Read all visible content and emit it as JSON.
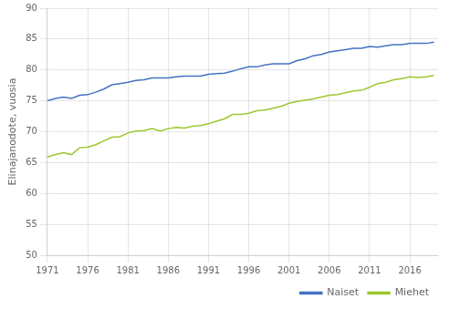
{
  "chart_data": {
    "type": "line",
    "ylabel": "Elinajanodote, vuosia",
    "x": [
      1971,
      1972,
      1973,
      1974,
      1975,
      1976,
      1977,
      1978,
      1979,
      1980,
      1981,
      1982,
      1983,
      1984,
      1985,
      1986,
      1987,
      1988,
      1989,
      1990,
      1991,
      1992,
      1993,
      1994,
      1995,
      1996,
      1997,
      1998,
      1999,
      2000,
      2001,
      2002,
      2003,
      2004,
      2005,
      2006,
      2007,
      2008,
      2009,
      2010,
      2011,
      2012,
      2013,
      2014,
      2015,
      2016,
      2017,
      2018,
      2019
    ],
    "series": [
      {
        "name": "Naiset",
        "color": "#4472c4",
        "values": [
          75.0,
          75.4,
          75.6,
          75.4,
          75.9,
          76.0,
          76.4,
          76.9,
          77.6,
          77.8,
          78.0,
          78.3,
          78.4,
          78.7,
          78.7,
          78.7,
          78.9,
          79.0,
          79.0,
          79.0,
          79.3,
          79.4,
          79.5,
          79.8,
          80.2,
          80.5,
          80.5,
          80.8,
          81.0,
          81.0,
          81.0,
          81.5,
          81.8,
          82.3,
          82.5,
          82.9,
          83.1,
          83.3,
          83.5,
          83.5,
          83.8,
          83.7,
          83.9,
          84.1,
          84.1,
          84.3,
          84.3,
          84.3,
          84.5
        ]
      },
      {
        "name": "Miehet",
        "color": "#9dc72f",
        "values": [
          65.9,
          66.3,
          66.6,
          66.3,
          67.4,
          67.5,
          67.9,
          68.5,
          69.1,
          69.2,
          69.8,
          70.1,
          70.2,
          70.5,
          70.1,
          70.5,
          70.7,
          70.6,
          70.9,
          71.0,
          71.3,
          71.7,
          72.1,
          72.8,
          72.8,
          73.0,
          73.4,
          73.5,
          73.8,
          74.1,
          74.6,
          74.9,
          75.1,
          75.3,
          75.6,
          75.9,
          76.0,
          76.3,
          76.6,
          76.7,
          77.2,
          77.8,
          78.0,
          78.4,
          78.6,
          78.9,
          78.8,
          78.9,
          79.1
        ]
      }
    ],
    "xlim": [
      1971,
      2019.5
    ],
    "xticks": [
      1971,
      1976,
      1981,
      1986,
      1991,
      1996,
      2001,
      2006,
      2011,
      2016
    ],
    "ylim": [
      50,
      90
    ],
    "yticks": [
      50,
      55,
      60,
      65,
      70,
      75,
      80,
      85,
      90
    ],
    "grid": true,
    "legend": "lower right"
  }
}
